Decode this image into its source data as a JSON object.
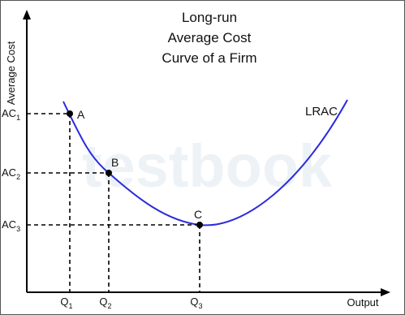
{
  "title": [
    "Long-run",
    "Average Cost",
    "Curve of a Firm"
  ],
  "axes": {
    "y": "Average Cost",
    "x": "Output"
  },
  "curve_label": "LRAC",
  "watermark": "testbook",
  "points": [
    {
      "label": "A",
      "ac": {
        "base": "AC",
        "sub": "1"
      },
      "q": {
        "base": "Q",
        "sub": "1"
      }
    },
    {
      "label": "B",
      "ac": {
        "base": "AC",
        "sub": "2"
      },
      "q": {
        "base": "Q",
        "sub": "2"
      }
    },
    {
      "label": "C",
      "ac": {
        "base": "AC",
        "sub": "3"
      },
      "q": {
        "base": "Q",
        "sub": "3"
      }
    }
  ]
}
